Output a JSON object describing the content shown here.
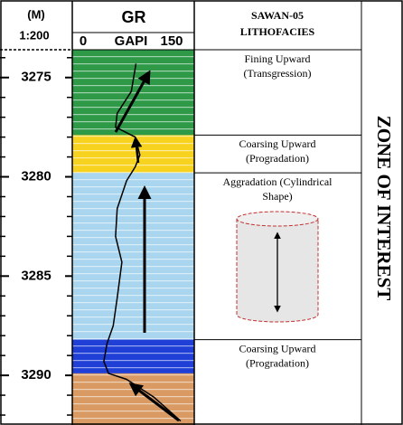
{
  "header": {
    "unit": "(M)",
    "scale": "1:200",
    "track": "GR",
    "gr_unit": "GAPI",
    "well": "SAWAN-05",
    "column": "LITHOFACIES"
  },
  "depth_range": [
    3273.6,
    3292.5
  ],
  "depth_ticks": [
    3275,
    3280,
    3285,
    3290
  ],
  "minor_ticks": [
    3274,
    3276,
    3277,
    3278,
    3279,
    3281,
    3282,
    3283,
    3284,
    3286,
    3287,
    3288,
    3289,
    3291,
    3292
  ],
  "gr_scale": [
    0,
    150
  ],
  "bands": [
    {
      "top": 3273.6,
      "bottom": 3277.9,
      "color": "#2e9a48"
    },
    {
      "top": 3277.9,
      "bottom": 3279.8,
      "color": "#f7d21e"
    },
    {
      "top": 3279.8,
      "bottom": 3288.2,
      "color": "#a9d6ee"
    },
    {
      "top": 3288.2,
      "bottom": 3289.9,
      "color": "#1f3fd6"
    },
    {
      "top": 3289.9,
      "bottom": 3292.5,
      "color": "#d99a63"
    }
  ],
  "gr_log": {
    "depth": [
      3274.3,
      3275.7,
      3276.8,
      3277.5,
      3278.0,
      3278.9,
      3279.5,
      3280.2,
      3281.6,
      3283.0,
      3284.3,
      3286.1,
      3287.5,
      3288.4,
      3289.3,
      3289.9,
      3290.2,
      3291.1,
      3292.3
    ],
    "gapi": [
      79,
      73,
      55,
      53,
      78,
      84,
      78,
      67,
      55,
      53,
      61,
      55,
      50,
      42,
      38,
      44,
      67,
      102,
      136
    ]
  },
  "facies": [
    {
      "top": 3273.6,
      "label": [
        "Fining Upward",
        "(Transgression)"
      ]
    },
    {
      "top": 3277.9,
      "label": [
        "Coarsing Upward",
        "(Progradation)"
      ]
    },
    {
      "top": 3279.8,
      "label": [
        "Aggradation (Cylindrical",
        "Shape)"
      ]
    },
    {
      "top": 3288.2,
      "label": [
        "Coarsing Upward",
        "(Progradation)"
      ]
    }
  ],
  "zone": "ZONE OF INTEREST"
}
